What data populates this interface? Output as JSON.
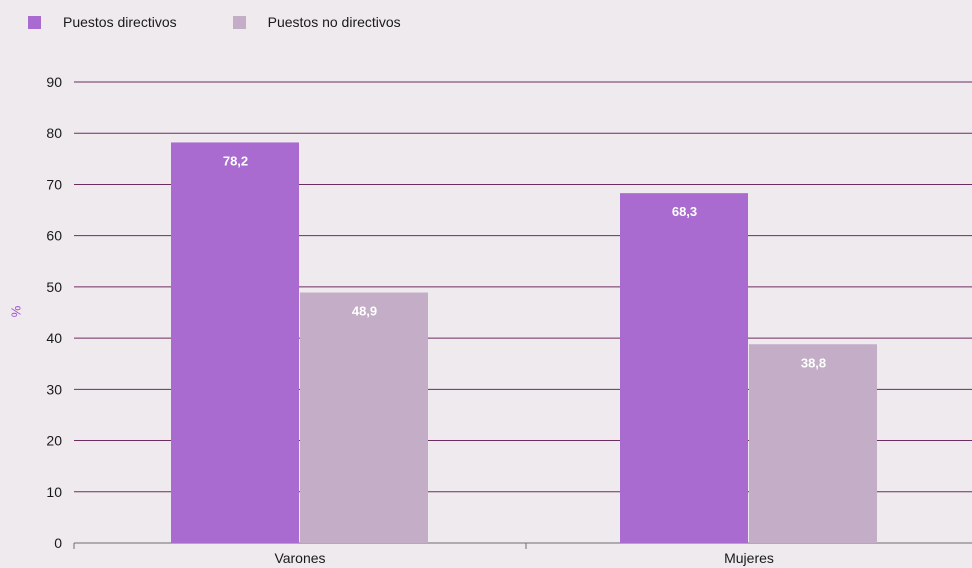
{
  "colors": {
    "directivos": "#a96bcf",
    "no_directivos": "#c4adc6",
    "grid": "#6f2c62",
    "axis_label": "#a24fd1",
    "data_label": "#ffffff"
  },
  "chart_data": {
    "type": "bar",
    "categories": [
      "Varones",
      "Mujeres"
    ],
    "series": [
      {
        "name": "Puestos directivos",
        "values": [
          78.2,
          68.3
        ],
        "labels": [
          "78,2",
          "68,3"
        ]
      },
      {
        "name": "Puestos no directivos",
        "values": [
          48.9,
          38.8
        ],
        "labels": [
          "48,9",
          "38,8"
        ]
      }
    ],
    "ylabel": "%",
    "ylim": [
      0,
      90
    ],
    "yticks": [
      0,
      10,
      20,
      30,
      40,
      50,
      60,
      70,
      80,
      90
    ],
    "grid": true,
    "legend": "top-left"
  }
}
